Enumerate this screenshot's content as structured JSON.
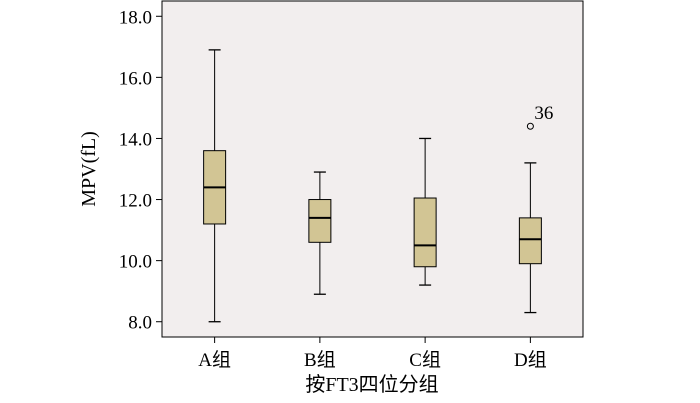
{
  "chart_data": {
    "type": "box",
    "xlabel": "按FT3四位分组",
    "ylabel": "MPV(fL)",
    "ylim": [
      7.5,
      18.5
    ],
    "yticks": [
      "8.0",
      "10.0",
      "12.0",
      "14.0",
      "16.0",
      "18.0"
    ],
    "categories": [
      "A组",
      "B组",
      "C组",
      "D组"
    ],
    "boxes": [
      {
        "min": 8.0,
        "q1": 11.2,
        "median": 12.4,
        "q3": 13.6,
        "max": 16.9
      },
      {
        "min": 8.9,
        "q1": 10.6,
        "median": 11.4,
        "q3": 12.0,
        "max": 12.9
      },
      {
        "min": 9.2,
        "q1": 9.8,
        "median": 10.5,
        "q3": 12.05,
        "max": 14.0
      },
      {
        "min": 8.3,
        "q1": 9.9,
        "median": 10.7,
        "q3": 11.4,
        "max": 13.2
      }
    ],
    "outliers": [
      {
        "category": "D组",
        "value": 14.4,
        "label": "36"
      }
    ],
    "grid": false,
    "colors": {
      "plot_background": "#f2eeee",
      "box_fill": "#d2c594",
      "line": "#000000"
    }
  }
}
